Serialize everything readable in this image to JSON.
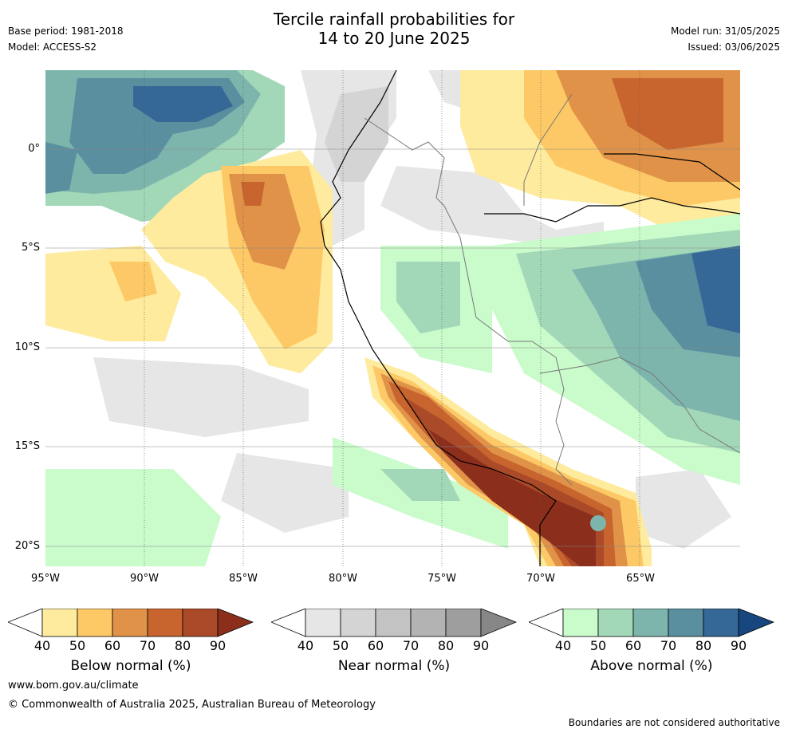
{
  "title": {
    "line1": "Tercile rainfall probabilities for",
    "line2": "14 to 20 June 2025"
  },
  "meta_left": {
    "base_period": "Base period: 1981-2018",
    "model": "Model: ACCESS-S2"
  },
  "meta_right": {
    "model_run": "Model run: 31/05/2025",
    "issued": "Issued: 03/06/2025"
  },
  "latitude_labels": [
    "0°",
    "5°S",
    "10°S",
    "15°S",
    "20°S"
  ],
  "longitude_labels": [
    "95°W",
    "90°W",
    "85°W",
    "80°W",
    "75°W",
    "70°W",
    "65°W"
  ],
  "colorbars": [
    {
      "label": "Below normal (%)",
      "ticks": [
        "40",
        "50",
        "60",
        "70",
        "80",
        "90"
      ],
      "colors": [
        "#ffffff",
        "#feeb9e",
        "#fdc966",
        "#e09348",
        "#c8652f",
        "#ab4a28",
        "#8b2e1c"
      ]
    },
    {
      "label": "Near normal (%)",
      "ticks": [
        "40",
        "50",
        "60",
        "70",
        "80",
        "90"
      ],
      "colors": [
        "#ffffff",
        "#e6e6e6",
        "#d4d4d4",
        "#c3c3c3",
        "#b3b3b3",
        "#9e9e9e",
        "#878787"
      ]
    },
    {
      "label": "Above normal (%)",
      "ticks": [
        "40",
        "50",
        "60",
        "70",
        "80",
        "90"
      ],
      "colors": [
        "#ffffff",
        "#c9fbcb",
        "#a2d8b8",
        "#7db5ad",
        "#5a8fa0",
        "#356896",
        "#17477e"
      ]
    }
  ],
  "footer": {
    "url": "www.bom.gov.au/climate",
    "copyright": "© Commonwealth of Australia 2025, Australian Bureau of Meteorology",
    "disclaimer": "Boundaries are not considered authoritative"
  }
}
